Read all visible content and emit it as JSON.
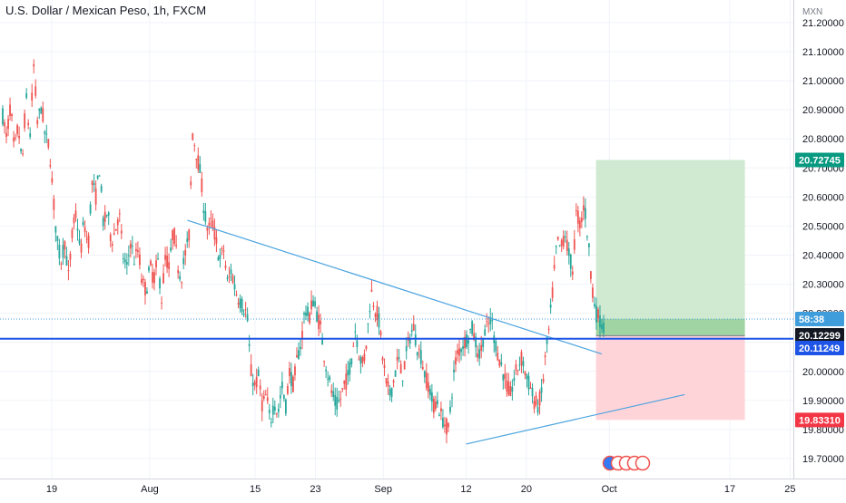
{
  "chart_data": {
    "type": "candlestick",
    "title": "U.S. Dollar / Mexican Peso, 1h, FXCM",
    "currency_label": "MXN",
    "y_axis": {
      "ticks": [
        "21.20000",
        "21.10000",
        "21.00000",
        "20.90000",
        "20.80000",
        "20.70000",
        "20.60000",
        "20.50000",
        "20.40000",
        "20.30000",
        "20.20000",
        "20.10000",
        "20.00000",
        "19.90000",
        "19.80000",
        "19.70000"
      ],
      "tick_values": [
        21.2,
        21.1,
        21.0,
        20.9,
        20.8,
        20.7,
        20.6,
        20.5,
        20.4,
        20.3,
        20.2,
        20.1,
        20.0,
        19.9,
        19.8,
        19.7
      ],
      "range": [
        19.63,
        21.24
      ]
    },
    "x_axis": {
      "ticks": [
        "19",
        "Aug",
        "15",
        "23",
        "Sep",
        "12",
        "20",
        "Oct",
        "17",
        "25"
      ],
      "note": "hourly data, approx. Jul 15 – Sep 29, projected to Oct 25"
    },
    "price_labels": {
      "target": {
        "text": "20.72745",
        "value": 20.72745,
        "color": "#089981"
      },
      "countdown": {
        "text": "58:38",
        "value": 20.18,
        "color": "#3f9ddc"
      },
      "last": {
        "text": "20.12299",
        "value": 20.12299,
        "color": "#131722"
      },
      "hline": {
        "text": "20.11249",
        "value": 20.11249,
        "color": "#1e55e6"
      },
      "stop": {
        "text": "19.83310",
        "value": 19.8331,
        "color": "#f23645"
      }
    },
    "horizontal_line": {
      "value": 20.11249,
      "color": "#1e55e6"
    },
    "trendlines": [
      {
        "name": "descending",
        "from": {
          "x": "Aug 6",
          "y": 20.52
        },
        "to": {
          "x": "Sep 30",
          "y": 20.06
        },
        "color": "#4aa3df"
      },
      {
        "name": "ascending",
        "from": {
          "x": "Sep 12",
          "y": 19.75
        },
        "to": {
          "x": "Oct 11",
          "y": 19.92
        },
        "color": "#4aa3df"
      }
    ],
    "long_position": {
      "entry": 20.12299,
      "target": 20.72745,
      "stop": 19.8331,
      "start": "Sep 29",
      "end": "Oct 19",
      "profit_color": "#c8e6c9",
      "loss_color": "#ffcdd2"
    },
    "series_path": [
      [
        20.88,
        20.8,
        20.92,
        20.75,
        20.85,
        20.7,
        20.95,
        20.8,
        21.05,
        20.85,
        20.92,
        20.8,
        20.78,
        20.6,
        20.45,
        20.38
      ],
      [
        20.45,
        20.32,
        20.48,
        20.55,
        20.4,
        20.52,
        20.42,
        20.65,
        20.6,
        20.7,
        20.5,
        20.55,
        20.45,
        20.48,
        20.55,
        20.4
      ],
      [
        20.35,
        20.45,
        20.38,
        20.42,
        20.3,
        20.28,
        20.36,
        20.32,
        20.38,
        20.25,
        20.4,
        20.35,
        20.5,
        20.38,
        20.32,
        20.4
      ],
      [
        20.45,
        20.82,
        20.75,
        20.68,
        20.55,
        20.48,
        20.52,
        20.45,
        20.38,
        20.42,
        20.3,
        20.35,
        20.28,
        20.25,
        20.22,
        20.2
      ],
      [
        20.0,
        19.95,
        19.98,
        19.88,
        19.92,
        19.82,
        19.9,
        19.85,
        19.95,
        19.88,
        20.0,
        19.95,
        20.05,
        20.1,
        20.22,
        20.18
      ],
      [
        20.25,
        20.2,
        20.15,
        20.05,
        19.98,
        19.92,
        19.88,
        19.9,
        19.95,
        19.98,
        20.05,
        20.15,
        20.05,
        20.02,
        20.12,
        20.28
      ],
      [
        20.22,
        20.18,
        20.05,
        19.95,
        19.92,
        19.98,
        20.05,
        19.98,
        20.05,
        20.12,
        20.15,
        20.08,
        20.05,
        19.98,
        19.95,
        19.88
      ],
      [
        19.9,
        19.85,
        19.82,
        19.8,
        19.95,
        20.05,
        20.08,
        20.1,
        20.12,
        20.15,
        20.1,
        20.05,
        20.12,
        20.15,
        20.18,
        20.1
      ],
      [
        20.05,
        20.0,
        19.95,
        19.92,
        19.98,
        20.02,
        20.05,
        19.98,
        19.95,
        19.9,
        19.88,
        19.92,
        20.05,
        20.15,
        20.3,
        20.45
      ],
      [
        20.42,
        20.48,
        20.4,
        20.35,
        20.55,
        20.5,
        20.58,
        20.45,
        20.3,
        20.2,
        20.18,
        20.15
      ]
    ]
  }
}
